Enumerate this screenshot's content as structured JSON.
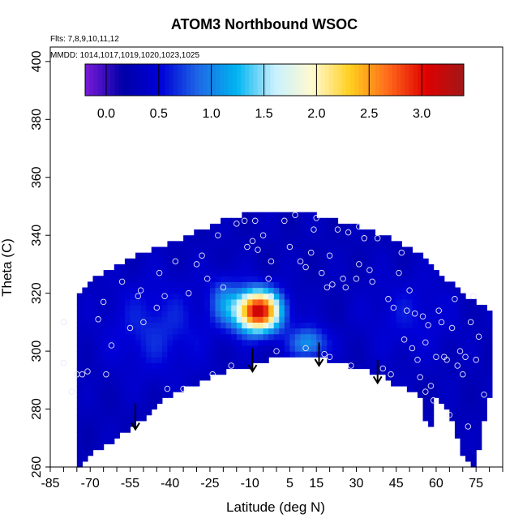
{
  "chart_data": {
    "type": "heatmap",
    "title": "ATOM3 Northbound WSOC",
    "annotations": [
      "Flts: 7,8,9,10,11,12",
      "MMDD: 1014,1017,1019,1020,1023,1025"
    ],
    "xlabel": "Latitude (deg N)",
    "ylabel": "Theta (C)",
    "xlim": [
      -85,
      85
    ],
    "ylim": [
      260,
      405
    ],
    "x_tick_labels": [
      "-85",
      "-70",
      "-55",
      "-40",
      "-25",
      "-10",
      "5",
      "15",
      "30",
      "45",
      "60",
      "75"
    ],
    "x_tick_values": [
      -85,
      -70,
      -55,
      -40,
      -25,
      -10,
      5,
      15,
      30,
      45,
      60,
      75
    ],
    "y_tick_values": [
      260,
      280,
      300,
      320,
      340,
      360,
      380,
      400
    ],
    "colorbar": {
      "range": [
        -0.2,
        3.4
      ],
      "tick_values": [
        0.0,
        0.5,
        1.0,
        1.5,
        2.0,
        2.5,
        3.0
      ],
      "tick_labels": [
        "0.0",
        "0.5",
        "1.0",
        "1.5",
        "2.0",
        "2.5",
        "3.0"
      ],
      "colors": [
        "#7a1ad8",
        "#0000a8",
        "#0000d8",
        "#1e6ae6",
        "#00b4f0",
        "#c8f0ff",
        "#fffad0",
        "#ffd020",
        "#ff6a1a",
        "#e00000",
        "#a01818"
      ]
    },
    "field_lower_boundary": [
      [
        -75,
        260
      ],
      [
        -70,
        264
      ],
      [
        -60,
        270
      ],
      [
        -50,
        277
      ],
      [
        -40,
        285
      ],
      [
        -30,
        289
      ],
      [
        -20,
        293
      ],
      [
        -10,
        295
      ],
      [
        0,
        298
      ],
      [
        10,
        299
      ],
      [
        20,
        297
      ],
      [
        30,
        294
      ],
      [
        40,
        292
      ],
      [
        45,
        288
      ],
      [
        50,
        287
      ],
      [
        55,
        283
      ],
      [
        57,
        270
      ],
      [
        60,
        285
      ],
      [
        65,
        278
      ],
      [
        70,
        265
      ],
      [
        73,
        260
      ],
      [
        75,
        262
      ],
      [
        80,
        285
      ]
    ],
    "field_upper_boundary": [
      [
        -80,
        310
      ],
      [
        -75,
        318
      ],
      [
        -68,
        325
      ],
      [
        -60,
        330
      ],
      [
        -50,
        334
      ],
      [
        -40,
        337
      ],
      [
        -30,
        341
      ],
      [
        -20,
        345
      ],
      [
        -10,
        348
      ],
      [
        0,
        348
      ],
      [
        10,
        348
      ],
      [
        20,
        346
      ],
      [
        30,
        343
      ],
      [
        40,
        340
      ],
      [
        50,
        336
      ],
      [
        55,
        333
      ],
      [
        60,
        328
      ],
      [
        65,
        324
      ],
      [
        70,
        320
      ],
      [
        80,
        314
      ]
    ],
    "background_value": 0.3,
    "hotspots": [
      {
        "lat": -7,
        "theta": 314,
        "sigma_lat": 6,
        "sigma_theta": 5,
        "amplitude": 2.9
      },
      {
        "lat": 12,
        "theta": 303,
        "sigma_lat": 5,
        "sigma_theta": 4,
        "amplitude": 0.8
      },
      {
        "lat": -45,
        "theta": 308,
        "sigma_lat": 14,
        "sigma_theta": 12,
        "amplitude": 0.35
      },
      {
        "lat": 50,
        "theta": 312,
        "sigma_lat": 12,
        "sigma_theta": 10,
        "amplitude": 0.25
      },
      {
        "lat": -20,
        "theta": 318,
        "sigma_lat": 4,
        "sigma_theta": 6,
        "amplitude": 0.5
      }
    ],
    "arrows": [
      {
        "lat": -53,
        "theta_top": 282,
        "theta_tip": 273
      },
      {
        "lat": -9,
        "theta_top": 301,
        "theta_tip": 293
      },
      {
        "lat": 16,
        "theta_top": 303,
        "theta_tip": 295
      },
      {
        "lat": 38,
        "theta_top": 297,
        "theta_tip": 289
      }
    ],
    "points": [
      [
        -80,
        310
      ],
      [
        -80,
        296
      ],
      [
        -77,
        286
      ],
      [
        -75,
        292
      ],
      [
        -73,
        292
      ],
      [
        -71,
        293
      ],
      [
        -67,
        311
      ],
      [
        -65,
        317
      ],
      [
        -64,
        292
      ],
      [
        -62,
        302
      ],
      [
        -58,
        324
      ],
      [
        -55,
        308
      ],
      [
        -52,
        319
      ],
      [
        -51,
        321
      ],
      [
        -50,
        310
      ],
      [
        -45,
        315
      ],
      [
        -44,
        327
      ],
      [
        -42,
        319
      ],
      [
        -41,
        287
      ],
      [
        -38,
        331
      ],
      [
        -35,
        287
      ],
      [
        -33,
        320
      ],
      [
        -30,
        330
      ],
      [
        -28,
        333
      ],
      [
        -26,
        325
      ],
      [
        -24,
        292
      ],
      [
        -22,
        340
      ],
      [
        -20,
        322
      ],
      [
        -17,
        295
      ],
      [
        -15,
        344
      ],
      [
        -12,
        345
      ],
      [
        -11,
        336
      ],
      [
        -9,
        338
      ],
      [
        -8,
        345
      ],
      [
        -7,
        335
      ],
      [
        -5,
        340
      ],
      [
        -3,
        325
      ],
      [
        -2,
        319
      ],
      [
        -2,
        331
      ],
      [
        0,
        300
      ],
      [
        3,
        345
      ],
      [
        5,
        336
      ],
      [
        7,
        347
      ],
      [
        9,
        331
      ],
      [
        11,
        329
      ],
      [
        11,
        301
      ],
      [
        13,
        334
      ],
      [
        14,
        342
      ],
      [
        15,
        346
      ],
      [
        17,
        327
      ],
      [
        18,
        299
      ],
      [
        19,
        322
      ],
      [
        20,
        333
      ],
      [
        20,
        298
      ],
      [
        21,
        323
      ],
      [
        23,
        342
      ],
      [
        25,
        325
      ],
      [
        26,
        322
      ],
      [
        27,
        341
      ],
      [
        28,
        295
      ],
      [
        30,
        325
      ],
      [
        31,
        330
      ],
      [
        31,
        343
      ],
      [
        33,
        339
      ],
      [
        35,
        328
      ],
      [
        36,
        324
      ],
      [
        38,
        339
      ],
      [
        40,
        294
      ],
      [
        42,
        318
      ],
      [
        43,
        292
      ],
      [
        44,
        315
      ],
      [
        46,
        327
      ],
      [
        47,
        334
      ],
      [
        48,
        304
      ],
      [
        49,
        314
      ],
      [
        50,
        321
      ],
      [
        51,
        301
      ],
      [
        52,
        313
      ],
      [
        53,
        297
      ],
      [
        54,
        291
      ],
      [
        55,
        312
      ],
      [
        56,
        286
      ],
      [
        56,
        303
      ],
      [
        57,
        309
      ],
      [
        58,
        288
      ],
      [
        59,
        283
      ],
      [
        60,
        298
      ],
      [
        61,
        314
      ],
      [
        62,
        310
      ],
      [
        63,
        298
      ],
      [
        64,
        297
      ],
      [
        65,
        278
      ],
      [
        66,
        308
      ],
      [
        67,
        318
      ],
      [
        68,
        295
      ],
      [
        69,
        300
      ],
      [
        70,
        292
      ],
      [
        71,
        298
      ],
      [
        72,
        274
      ],
      [
        73,
        310
      ],
      [
        74,
        319
      ],
      [
        75,
        297
      ],
      [
        76,
        305
      ],
      [
        78,
        285
      ]
    ]
  }
}
